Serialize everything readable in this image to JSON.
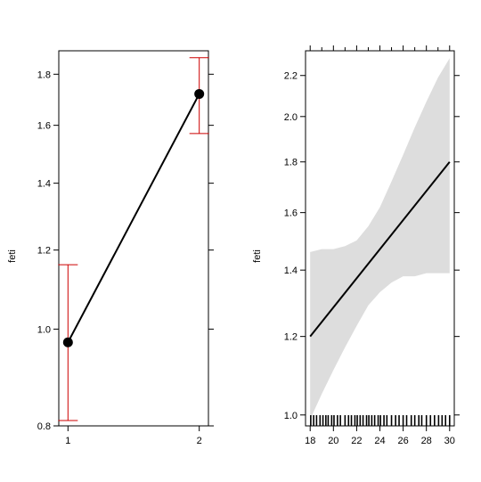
{
  "chart_data": [
    {
      "type": "scatter",
      "ylabel": "feti",
      "y_scale": "log",
      "xlim": [
        0.93,
        2.07
      ],
      "ylim": [
        0.8,
        1.9
      ],
      "x_ticks": [
        1,
        2
      ],
      "y_ticks": [
        0.8,
        1.0,
        1.2,
        1.4,
        1.6,
        1.8
      ],
      "x_tick_labels": [
        "1",
        "2"
      ],
      "y_tick_labels": [
        "0.8",
        "1.0",
        "1.2",
        "1.4",
        "1.6",
        "1.8"
      ],
      "line_color": "#000000",
      "error_bar_color": "#cc0000",
      "points": [
        {
          "x": 1,
          "y": 0.97,
          "lower": 0.81,
          "upper": 1.16
        },
        {
          "x": 2,
          "y": 1.72,
          "lower": 1.57,
          "upper": 1.87
        }
      ]
    },
    {
      "type": "line",
      "ylabel": "feti",
      "y_scale": "log",
      "xlim": [
        17.6,
        30.4
      ],
      "ylim": [
        0.975,
        2.33
      ],
      "x_ticks": [
        18,
        20,
        22,
        24,
        26,
        28,
        30
      ],
      "y_ticks": [
        1.0,
        1.2,
        1.4,
        1.6,
        1.8,
        2.0,
        2.2
      ],
      "x_tick_labels": [
        "18",
        "20",
        "22",
        "24",
        "26",
        "28",
        "30"
      ],
      "y_tick_labels": [
        "1.0",
        "1.2",
        "1.4",
        "1.6",
        "1.8",
        "2.0",
        "2.2"
      ],
      "line_color": "#000000",
      "band_color": "#dddddd",
      "fit": {
        "x": [
          18,
          30
        ],
        "y": [
          1.2,
          1.8
        ]
      },
      "band": {
        "x": [
          18,
          19,
          20,
          21,
          22,
          23,
          24,
          25,
          26,
          27,
          28,
          29,
          30
        ],
        "upper": [
          1.46,
          1.47,
          1.47,
          1.48,
          1.5,
          1.55,
          1.62,
          1.72,
          1.83,
          1.95,
          2.07,
          2.19,
          2.29
        ],
        "lower": [
          0.99,
          1.05,
          1.11,
          1.17,
          1.23,
          1.29,
          1.33,
          1.36,
          1.38,
          1.38,
          1.39,
          1.39,
          1.39
        ]
      },
      "rug_x": [
        18.05,
        18.3,
        18.55,
        18.85,
        19.1,
        19.35,
        19.55,
        19.85,
        20.05,
        20.35,
        20.6,
        21.0,
        21.3,
        21.55,
        21.85,
        22.05,
        22.3,
        22.55,
        22.85,
        23.05,
        23.3,
        23.55,
        23.85,
        24.05,
        24.35,
        24.6,
        25.0,
        25.35,
        25.65,
        26.0,
        26.3,
        26.7,
        27.0,
        27.35,
        27.6,
        28.0,
        28.35,
        28.7,
        29.05,
        29.35,
        29.65,
        30.0
      ]
    }
  ]
}
